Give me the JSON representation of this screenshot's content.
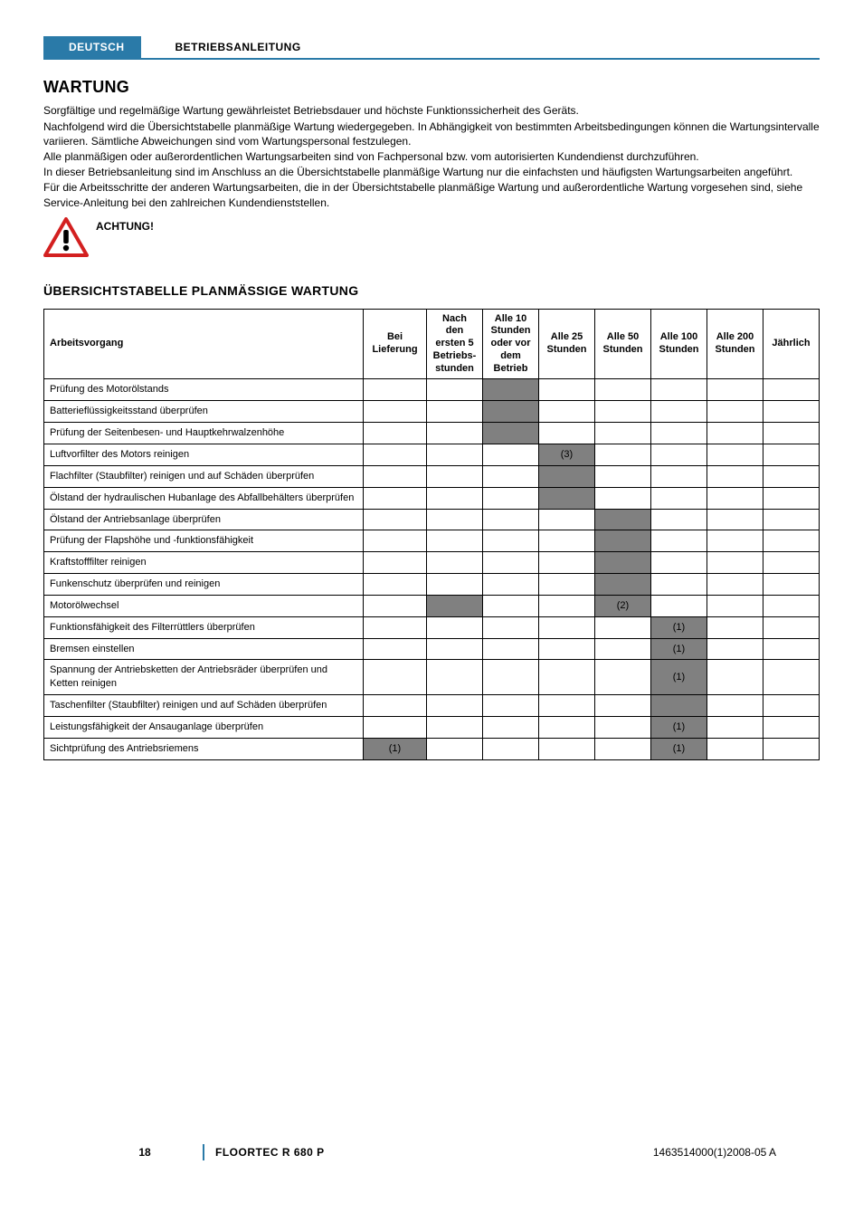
{
  "header": {
    "language": "DEUTSCH",
    "doc_type": "BETRIEBSANLEITUNG"
  },
  "section_title": "WARTUNG",
  "intro_paragraphs": [
    "Sorgfältige und regelmäßige Wartung gewährleistet Betriebsdauer und höchste Funktionssicherheit des Geräts.",
    "Nachfolgend wird die Übersichtstabelle planmäßige Wartung wiedergegeben. In Abhängigkeit von bestimmten Arbeitsbedingungen können die Wartungsintervalle variieren. Sämtliche Abweichungen sind vom Wartungspersonal festzulegen.",
    "Alle planmäßigen oder außerordentlichen Wartungsarbeiten sind von Fachpersonal bzw. vom autorisierten Kundendienst durchzuführen.",
    "In dieser Betriebsanleitung sind im Anschluss an die Übersichtstabelle planmäßige Wartung nur die einfachsten und häufigsten Wartungsarbeiten angeführt.",
    "Für die Arbeitsschritte der anderen Wartungsarbeiten, die in der Übersichtstabelle planmäßige Wartung und außerordentliche Wartung vorgesehen sind, siehe Service-Anleitung bei den zahlreichen Kundendienststellen."
  ],
  "warning_label": "ACHTUNG!",
  "warning_icon": {
    "stroke": "#d32020",
    "fill": "#ffffff",
    "mark": "#000000"
  },
  "table_title": "ÜBERSICHTSTABELLE PLANMÄSSIGE WARTUNG",
  "columns": [
    "Arbeitsvorgang",
    "Bei Lieferung",
    "Nach den ersten 5 Betriebs­stunden",
    "Alle 10 Stunden oder vor dem Betrieb",
    "Alle 25 Stunden",
    "Alle 50 Stunden",
    "Alle 100 Stunden",
    "Alle 200 Stunden",
    "Jährlich"
  ],
  "rows": [
    {
      "label": "Prüfung des Motorölstands",
      "cells": [
        "",
        "",
        "shaded",
        "",
        "",
        "",
        "",
        ""
      ]
    },
    {
      "label": "Batterieflüssigkeitsstand überprüfen",
      "cells": [
        "",
        "",
        "shaded",
        "",
        "",
        "",
        "",
        ""
      ]
    },
    {
      "label": "Prüfung der Seitenbesen- und Hauptkehrwalzenhöhe",
      "cells": [
        "",
        "",
        "shaded",
        "",
        "",
        "",
        "",
        ""
      ]
    },
    {
      "label": "Luftvorfilter des Motors reinigen",
      "cells": [
        "",
        "",
        "",
        "(3)",
        "",
        "",
        "",
        ""
      ]
    },
    {
      "label": "Flachfilter (Staubfilter) reinigen und auf Schäden überprüfen",
      "cells": [
        "",
        "",
        "",
        "shaded",
        "",
        "",
        "",
        ""
      ]
    },
    {
      "label": "Ölstand der hydraulischen Hubanlage des Abfallbehälters überprüfen",
      "cells": [
        "",
        "",
        "",
        "shaded",
        "",
        "",
        "",
        ""
      ]
    },
    {
      "label": "Ölstand der Antriebsanlage überprüfen",
      "cells": [
        "",
        "",
        "",
        "",
        "shaded",
        "",
        "",
        ""
      ]
    },
    {
      "label": "Prüfung der Flapshöhe und -funktionsfähigkeit",
      "cells": [
        "",
        "",
        "",
        "",
        "shaded",
        "",
        "",
        ""
      ]
    },
    {
      "label": "Kraftstofffilter reinigen",
      "cells": [
        "",
        "",
        "",
        "",
        "shaded",
        "",
        "",
        ""
      ]
    },
    {
      "label": "Funkenschutz überprüfen und reinigen",
      "cells": [
        "",
        "",
        "",
        "",
        "shaded",
        "",
        "",
        ""
      ]
    },
    {
      "label": "Motorölwechsel",
      "cells": [
        "",
        "shaded",
        "",
        "",
        "(2)",
        "",
        "",
        ""
      ]
    },
    {
      "label": "Funktionsfähigkeit des Filterrüttlers überprüfen",
      "cells": [
        "",
        "",
        "",
        "",
        "",
        "(1)",
        "",
        ""
      ]
    },
    {
      "label": "Bremsen einstellen",
      "cells": [
        "",
        "",
        "",
        "",
        "",
        "(1)",
        "",
        ""
      ]
    },
    {
      "label": "Spannung der Antriebsketten der Antriebsräder überprüfen und Ketten reinigen",
      "cells": [
        "",
        "",
        "",
        "",
        "",
        "(1)",
        "",
        ""
      ]
    },
    {
      "label": "Taschenfilter (Staubfilter) reinigen und auf Schäden überprüfen",
      "cells": [
        "",
        "",
        "",
        "",
        "",
        "shaded",
        "",
        ""
      ]
    },
    {
      "label": "Leistungsfähigkeit der Ansauganlage überprüfen",
      "cells": [
        "",
        "",
        "",
        "",
        "",
        "(1)",
        "",
        ""
      ]
    },
    {
      "label": "Sichtprüfung des Antriebsriemens",
      "cells": [
        "(1)",
        "",
        "",
        "",
        "",
        "(1)",
        "",
        ""
      ]
    }
  ],
  "shaded_color": "#808080",
  "footer": {
    "page": "18",
    "model": "FLOORTEC R 680 P",
    "docnum": "1463514000(1)2008-05 A"
  }
}
